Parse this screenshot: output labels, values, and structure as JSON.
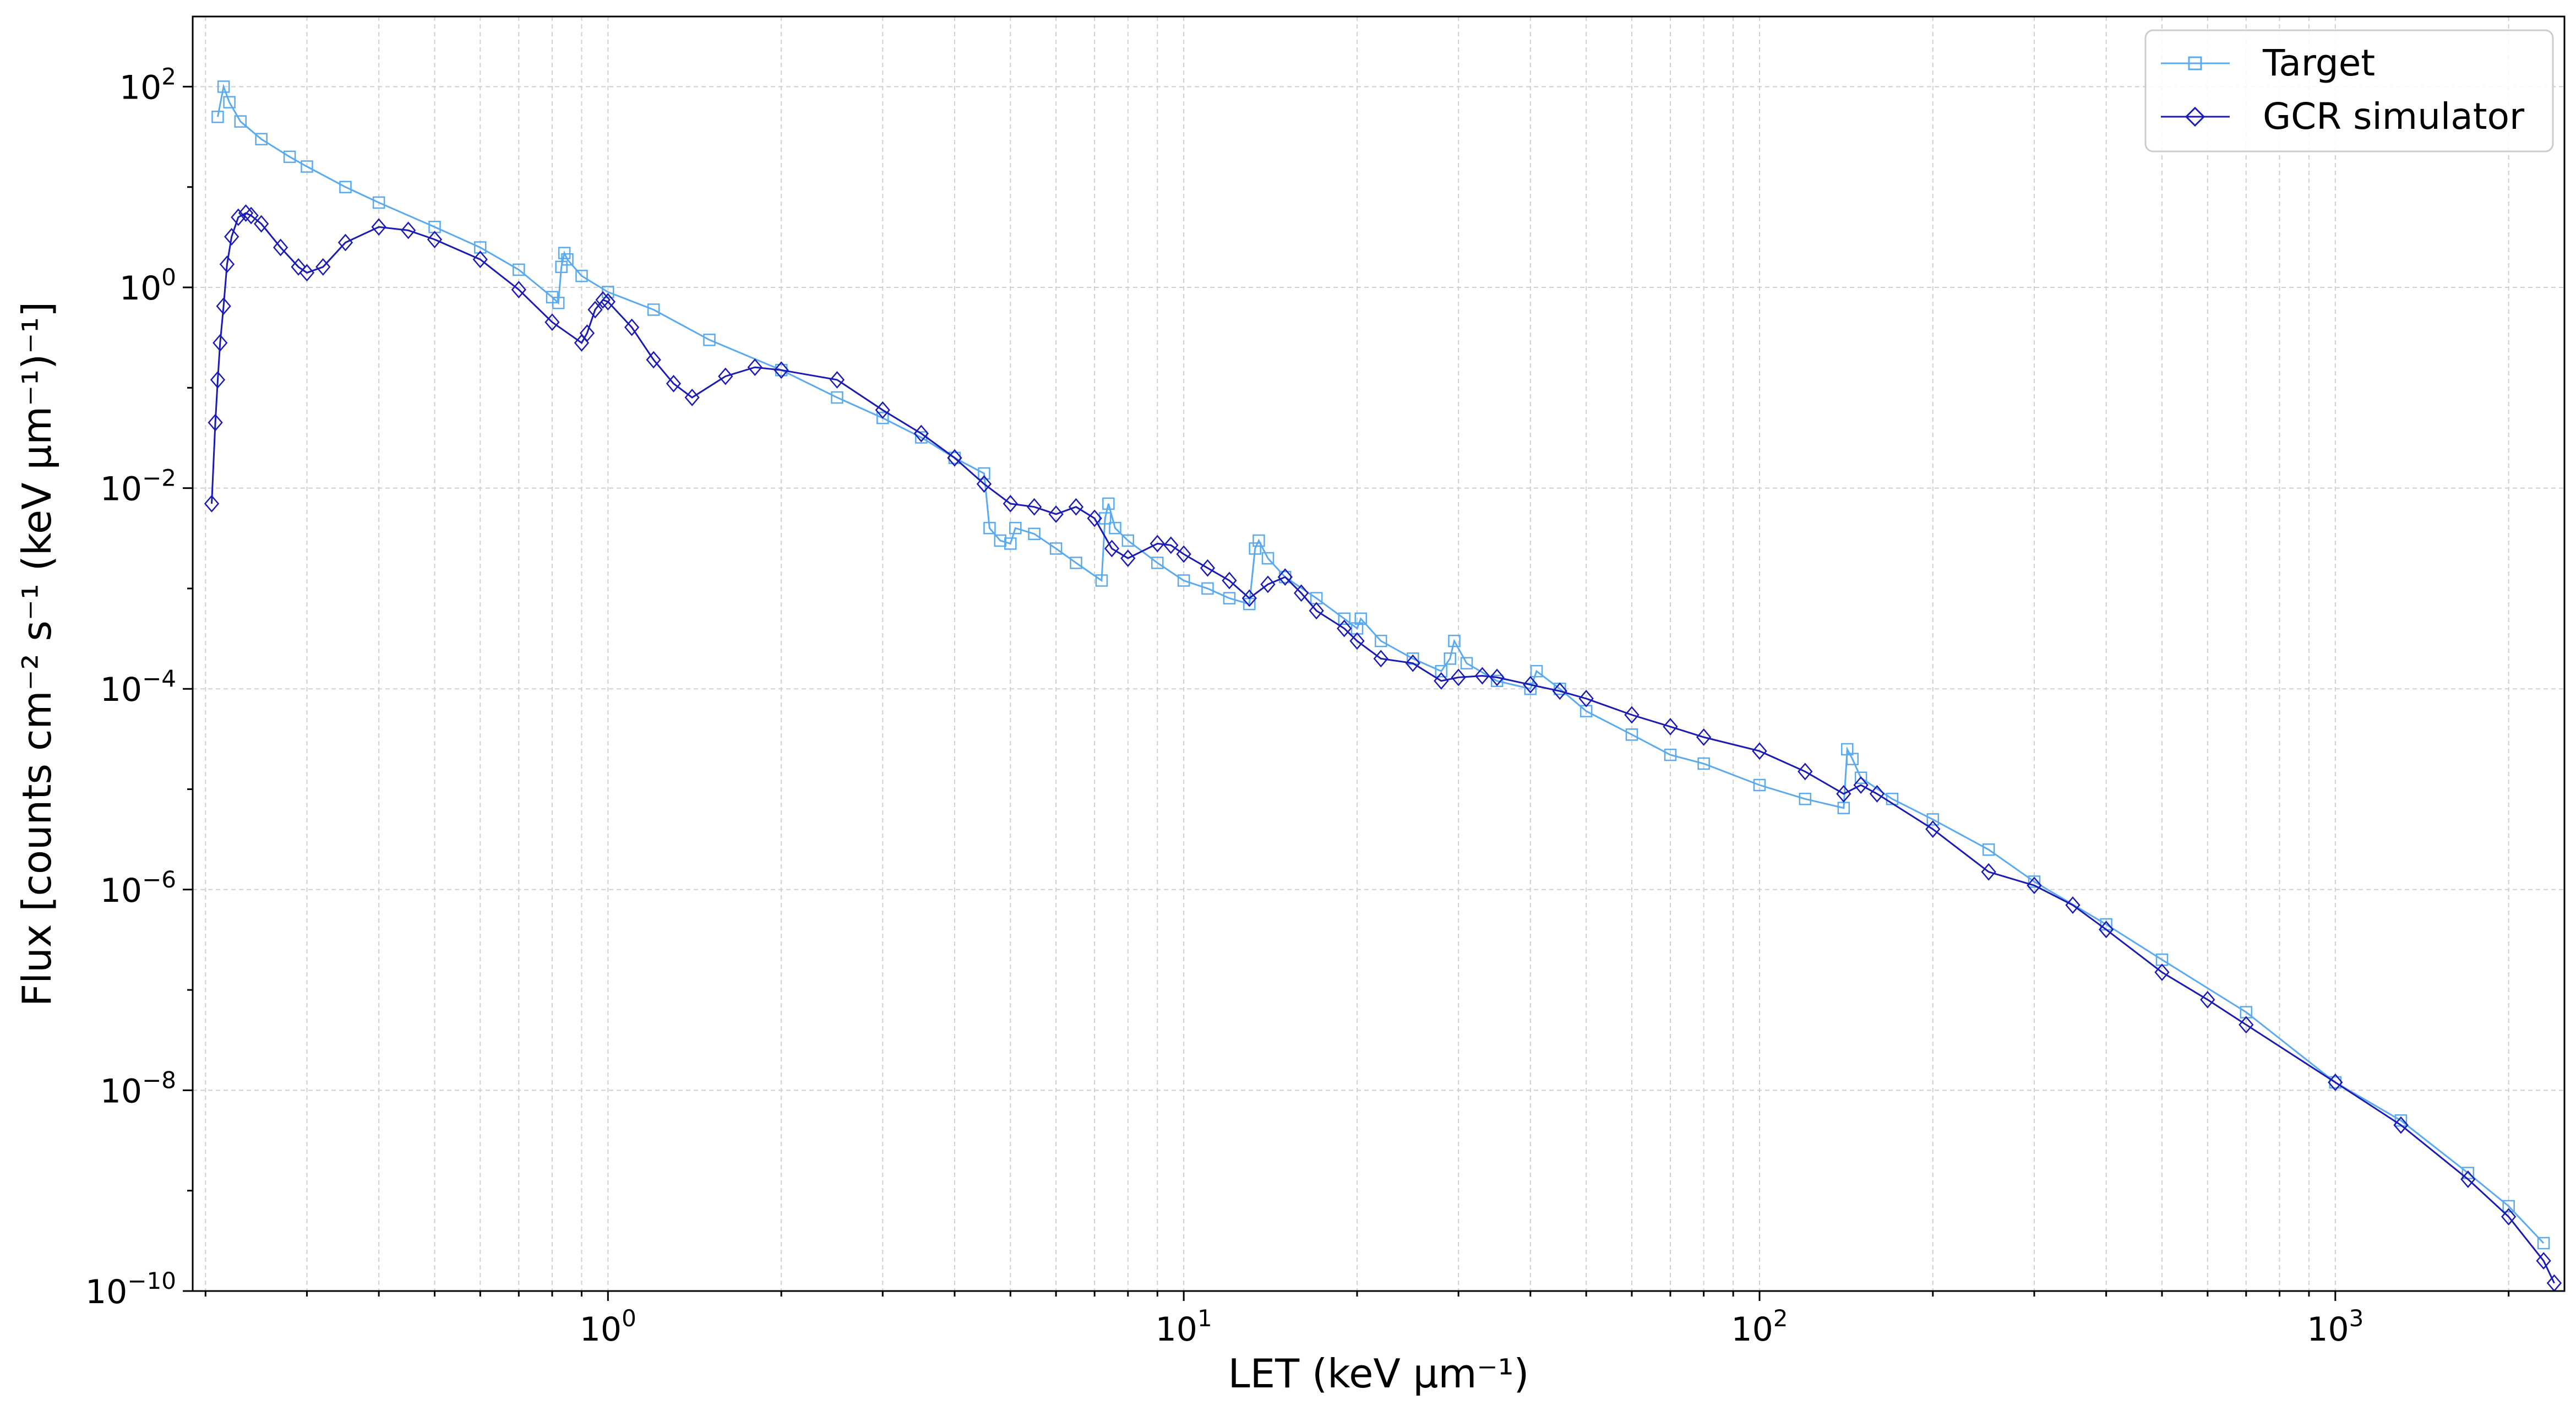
{
  "chart_data": {
    "type": "line",
    "title": "",
    "xlabel": "LET (keV μm⁻¹)",
    "ylabel": "Flux [counts cm⁻² s⁻¹ (keV μm⁻¹)⁻¹]",
    "xscale": "log",
    "yscale": "log",
    "xlim": [
      0.19,
      2500
    ],
    "ylim": [
      1e-10,
      500
    ],
    "grid": true,
    "legend_position": "top-right",
    "x_ticks": [
      {
        "value": 1,
        "base": "10",
        "exp": "0"
      },
      {
        "value": 10,
        "base": "10",
        "exp": "1"
      },
      {
        "value": 100,
        "base": "10",
        "exp": "2"
      },
      {
        "value": 1000,
        "base": "10",
        "exp": "3"
      }
    ],
    "y_ticks": [
      {
        "value": 1e-10,
        "base": "10",
        "exp": "−10"
      },
      {
        "value": 1e-08,
        "base": "10",
        "exp": "−8"
      },
      {
        "value": 1e-06,
        "base": "10",
        "exp": "−6"
      },
      {
        "value": 0.0001,
        "base": "10",
        "exp": "−4"
      },
      {
        "value": 0.01,
        "base": "10",
        "exp": "−2"
      },
      {
        "value": 1,
        "base": "10",
        "exp": "0"
      },
      {
        "value": 100,
        "base": "10",
        "exp": "2"
      }
    ],
    "series": [
      {
        "name": "Target",
        "color": "#5aaaf0",
        "marker": "square",
        "points": [
          [
            0.21,
            50
          ],
          [
            0.215,
            100
          ],
          [
            0.22,
            70
          ],
          [
            0.23,
            45
          ],
          [
            0.25,
            30
          ],
          [
            0.28,
            20
          ],
          [
            0.3,
            16
          ],
          [
            0.35,
            10
          ],
          [
            0.4,
            7
          ],
          [
            0.5,
            4
          ],
          [
            0.6,
            2.5
          ],
          [
            0.7,
            1.5
          ],
          [
            0.8,
            0.8
          ],
          [
            0.82,
            0.7
          ],
          [
            0.83,
            1.6
          ],
          [
            0.84,
            2.2
          ],
          [
            0.85,
            1.9
          ],
          [
            0.9,
            1.3
          ],
          [
            1.0,
            0.9
          ],
          [
            1.2,
            0.6
          ],
          [
            1.5,
            0.3
          ],
          [
            2.0,
            0.15
          ],
          [
            2.5,
            0.08
          ],
          [
            3.0,
            0.05
          ],
          [
            3.5,
            0.032
          ],
          [
            4.0,
            0.02
          ],
          [
            4.5,
            0.014
          ],
          [
            4.6,
            0.004
          ],
          [
            4.8,
            0.003
          ],
          [
            5.0,
            0.0028
          ],
          [
            5.1,
            0.004
          ],
          [
            5.5,
            0.0035
          ],
          [
            6.0,
            0.0025
          ],
          [
            6.5,
            0.0018
          ],
          [
            7.2,
            0.0012
          ],
          [
            7.3,
            0.005
          ],
          [
            7.4,
            0.007
          ],
          [
            7.6,
            0.004
          ],
          [
            8.0,
            0.003
          ],
          [
            9.0,
            0.0018
          ],
          [
            10.0,
            0.0012
          ],
          [
            11.0,
            0.001
          ],
          [
            12.0,
            0.0008
          ],
          [
            13.0,
            0.0007
          ],
          [
            13.3,
            0.0025
          ],
          [
            13.5,
            0.003
          ],
          [
            14.0,
            0.002
          ],
          [
            15.0,
            0.0013
          ],
          [
            17.0,
            0.0008
          ],
          [
            19.0,
            0.0005
          ],
          [
            20.0,
            0.0004
          ],
          [
            20.3,
            0.0005
          ],
          [
            22.0,
            0.0003
          ],
          [
            25.0,
            0.0002
          ],
          [
            28.0,
            0.00015
          ],
          [
            29.0,
            0.0002
          ],
          [
            29.5,
            0.0003
          ],
          [
            31.0,
            0.00018
          ],
          [
            35.0,
            0.00012
          ],
          [
            40.0,
            0.0001
          ],
          [
            41.0,
            0.00015
          ],
          [
            45.0,
            0.0001
          ],
          [
            50.0,
            6e-05
          ],
          [
            60.0,
            3.5e-05
          ],
          [
            70.0,
            2.2e-05
          ],
          [
            80.0,
            1.8e-05
          ],
          [
            100.0,
            1.1e-05
          ],
          [
            120.0,
            8e-06
          ],
          [
            140.0,
            6.5e-06
          ],
          [
            142.0,
            2.5e-05
          ],
          [
            145.0,
            2e-05
          ],
          [
            150.0,
            1.3e-05
          ],
          [
            170.0,
            8e-06
          ],
          [
            200.0,
            5e-06
          ],
          [
            250.0,
            2.5e-06
          ],
          [
            300.0,
            1.2e-06
          ],
          [
            400.0,
            4.5e-07
          ],
          [
            500.0,
            2e-07
          ],
          [
            700.0,
            6e-08
          ],
          [
            1000.0,
            1.2e-08
          ],
          [
            1300.0,
            5e-09
          ],
          [
            1700.0,
            1.5e-09
          ],
          [
            2000.0,
            7e-10
          ],
          [
            2300.0,
            3e-10
          ]
        ]
      },
      {
        "name": "GCR simulator",
        "color": "#1a1ab4",
        "marker": "diamond",
        "points": [
          [
            0.205,
            0.007
          ],
          [
            0.208,
            0.045
          ],
          [
            0.21,
            0.12
          ],
          [
            0.212,
            0.28
          ],
          [
            0.215,
            0.65
          ],
          [
            0.218,
            1.7
          ],
          [
            0.222,
            3.2
          ],
          [
            0.228,
            5.0
          ],
          [
            0.235,
            5.5
          ],
          [
            0.24,
            5.2
          ],
          [
            0.25,
            4.3
          ],
          [
            0.27,
            2.5
          ],
          [
            0.29,
            1.6
          ],
          [
            0.3,
            1.4
          ],
          [
            0.32,
            1.6
          ],
          [
            0.35,
            2.8
          ],
          [
            0.4,
            4.0
          ],
          [
            0.45,
            3.7
          ],
          [
            0.5,
            3.0
          ],
          [
            0.6,
            1.9
          ],
          [
            0.7,
            0.95
          ],
          [
            0.8,
            0.45
          ],
          [
            0.9,
            0.28
          ],
          [
            0.92,
            0.35
          ],
          [
            0.95,
            0.6
          ],
          [
            0.98,
            0.75
          ],
          [
            1.0,
            0.72
          ],
          [
            1.1,
            0.4
          ],
          [
            1.2,
            0.19
          ],
          [
            1.3,
            0.11
          ],
          [
            1.4,
            0.08
          ],
          [
            1.6,
            0.13
          ],
          [
            1.8,
            0.16
          ],
          [
            2.0,
            0.15
          ],
          [
            2.5,
            0.12
          ],
          [
            3.0,
            0.06
          ],
          [
            3.5,
            0.035
          ],
          [
            4.0,
            0.02
          ],
          [
            4.5,
            0.011
          ],
          [
            5.0,
            0.007
          ],
          [
            5.5,
            0.0065
          ],
          [
            6.0,
            0.0055
          ],
          [
            6.5,
            0.0065
          ],
          [
            7.0,
            0.005
          ],
          [
            7.5,
            0.0025
          ],
          [
            8.0,
            0.002
          ],
          [
            9.0,
            0.0028
          ],
          [
            9.5,
            0.0027
          ],
          [
            10.0,
            0.0022
          ],
          [
            11.0,
            0.0016
          ],
          [
            12.0,
            0.0012
          ],
          [
            13.0,
            0.0008
          ],
          [
            14.0,
            0.0011
          ],
          [
            15.0,
            0.0013
          ],
          [
            16.0,
            0.0009
          ],
          [
            17.0,
            0.0006
          ],
          [
            19.0,
            0.0004
          ],
          [
            20.0,
            0.0003
          ],
          [
            22.0,
            0.0002
          ],
          [
            25.0,
            0.00018
          ],
          [
            28.0,
            0.00012
          ],
          [
            30.0,
            0.00013
          ],
          [
            33.0,
            0.000135
          ],
          [
            35.0,
            0.00013
          ],
          [
            40.0,
            0.00011
          ],
          [
            45.0,
            9.5e-05
          ],
          [
            50.0,
            8e-05
          ],
          [
            60.0,
            5.5e-05
          ],
          [
            70.0,
            4.2e-05
          ],
          [
            80.0,
            3.3e-05
          ],
          [
            100.0,
            2.4e-05
          ],
          [
            120.0,
            1.5e-05
          ],
          [
            140.0,
            9e-06
          ],
          [
            150.0,
            1.1e-05
          ],
          [
            160.0,
            9e-06
          ],
          [
            200.0,
            4e-06
          ],
          [
            250.0,
            1.5e-06
          ],
          [
            300.0,
            1.1e-06
          ],
          [
            350.0,
            7e-07
          ],
          [
            400.0,
            4e-07
          ],
          [
            500.0,
            1.5e-07
          ],
          [
            600.0,
            8e-08
          ],
          [
            700.0,
            4.5e-08
          ],
          [
            1000.0,
            1.2e-08
          ],
          [
            1300.0,
            4.5e-09
          ],
          [
            1700.0,
            1.3e-09
          ],
          [
            2000.0,
            5.5e-10
          ],
          [
            2300.0,
            2e-10
          ],
          [
            2400.0,
            1.2e-10
          ]
        ]
      }
    ]
  }
}
